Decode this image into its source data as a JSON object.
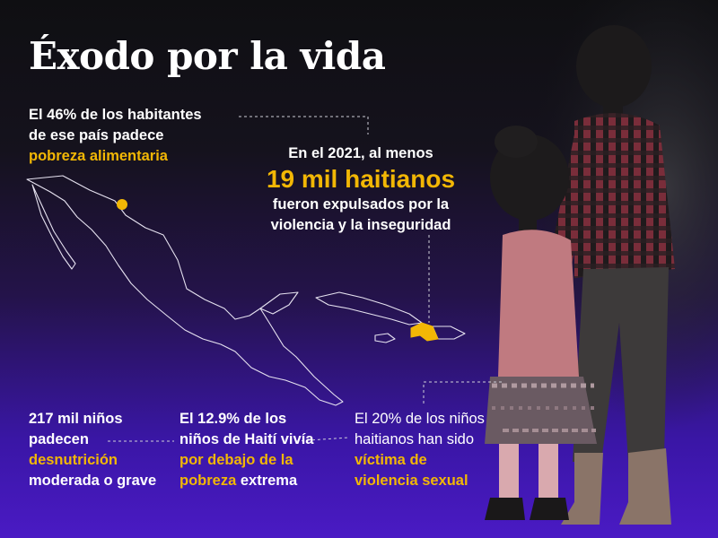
{
  "title": "Éxodo por la vida",
  "poverty": {
    "line1": "El 46% de los habitantes",
    "line2": "de ese país padece",
    "highlight": "pobreza alimentaria"
  },
  "expelled": {
    "line1": "En el 2021, al menos",
    "big": "19 mil haitianos",
    "line2": "fueron expulsados por la",
    "line3": "violencia y la inseguridad"
  },
  "malnutrition": {
    "line1": "217 mil niños",
    "line2": "padecen",
    "highlight": "desnutrición",
    "line3": "moderada o grave"
  },
  "extreme": {
    "line1": "El 12.9% de los",
    "line2": "niños de Haití vivía",
    "highlight1": "por debajo de la",
    "highlight2": "pobreza",
    "tail": " extrema"
  },
  "violence": {
    "line1": "El 20% de los niños",
    "line2": "haitianos han sido",
    "highlight1": "víctima de",
    "highlight2": "violencia sexual"
  },
  "colors": {
    "accent": "#f2b705",
    "map_outline": "#e6e2f0",
    "leader": "#cfcfd8"
  }
}
